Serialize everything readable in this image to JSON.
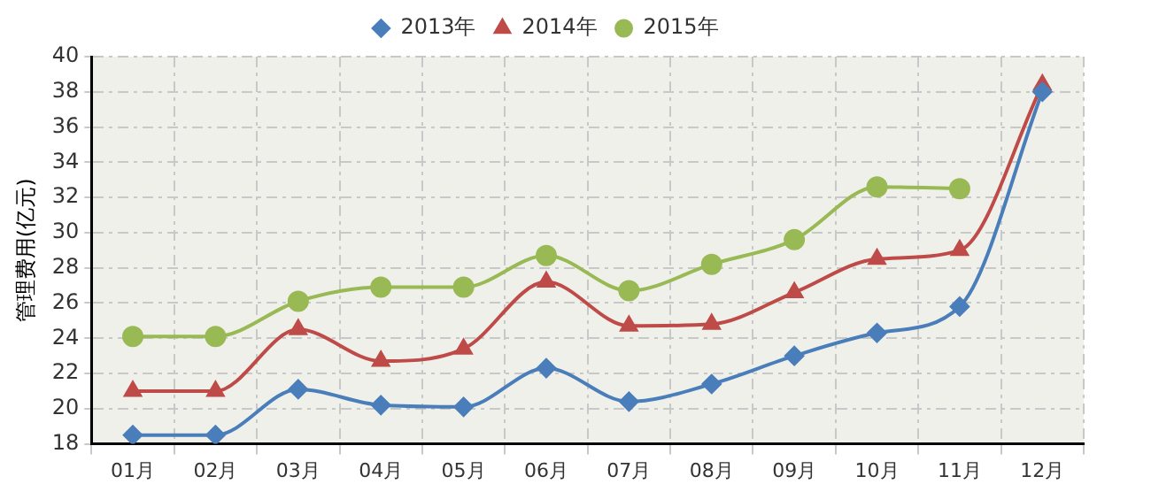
{
  "chart_data": {
    "type": "line",
    "ylabel": "管理费用(亿元)",
    "categories": [
      "01月",
      "02月",
      "03月",
      "04月",
      "05月",
      "06月",
      "07月",
      "08月",
      "09月",
      "10月",
      "11月",
      "12月"
    ],
    "series": [
      {
        "name": "2013年",
        "color": "#4a7ebb",
        "marker": "diamond",
        "values": [
          18.5,
          18.5,
          21.1,
          20.2,
          20.1,
          22.3,
          20.4,
          21.4,
          23.0,
          24.3,
          25.8,
          38.0
        ]
      },
      {
        "name": "2014年",
        "color": "#be4b48",
        "marker": "triangle",
        "values": [
          21.0,
          21.0,
          24.5,
          22.7,
          23.4,
          27.2,
          24.7,
          24.8,
          26.6,
          28.5,
          29.0,
          38.4
        ]
      },
      {
        "name": "2015年",
        "color": "#98b954",
        "marker": "circle",
        "values": [
          24.1,
          24.1,
          26.1,
          26.9,
          26.9,
          28.7,
          26.7,
          28.2,
          29.6,
          32.6,
          32.5,
          null
        ]
      }
    ],
    "ylim": [
      18,
      40
    ],
    "yticks": [
      18,
      20,
      22,
      24,
      26,
      28,
      30,
      32,
      34,
      36,
      38,
      40
    ],
    "grid": true,
    "legend": "top",
    "line_style": "solid"
  }
}
